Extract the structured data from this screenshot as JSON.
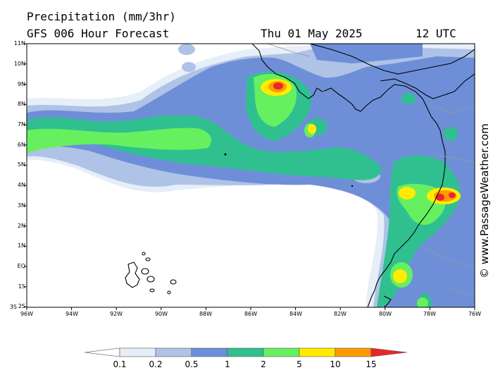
{
  "title_line1": "Precipitation (mm/3hr)",
  "title_line2": "GFS 006 Hour Forecast",
  "date": "Thu 01 May 2025",
  "time": "12 UTC",
  "watermark": "© www.PassageWeather.com",
  "lat_labels": [
    "11N",
    "10N",
    "9N",
    "8N",
    "7N",
    "6N",
    "5N",
    "4N",
    "3N",
    "2N",
    "1N",
    "EQ",
    "1S",
    "2S",
    "3S"
  ],
  "lon_labels": [
    "96W",
    "94W",
    "92W",
    "90W",
    "88W",
    "86W",
    "84W",
    "82W",
    "80W",
    "78W",
    "76W"
  ],
  "legend": {
    "values": [
      "0.1",
      "0.2",
      "0.5",
      "1",
      "2",
      "5",
      "10",
      "15"
    ],
    "colors": [
      "#ffffff",
      "#e6eef8",
      "#aec3e6",
      "#6e8fd8",
      "#30c090",
      "#66f060",
      "#ffec00",
      "#ff9a00",
      "#e8262c"
    ]
  },
  "palette": {
    "very_light": "#e6eef8",
    "light_blue": "#aec3e6",
    "blue": "#6e8fd8",
    "teal": "#30c090",
    "green": "#66f060",
    "yellow": "#ffec00",
    "orange": "#ff9a00",
    "red": "#e8262c"
  }
}
